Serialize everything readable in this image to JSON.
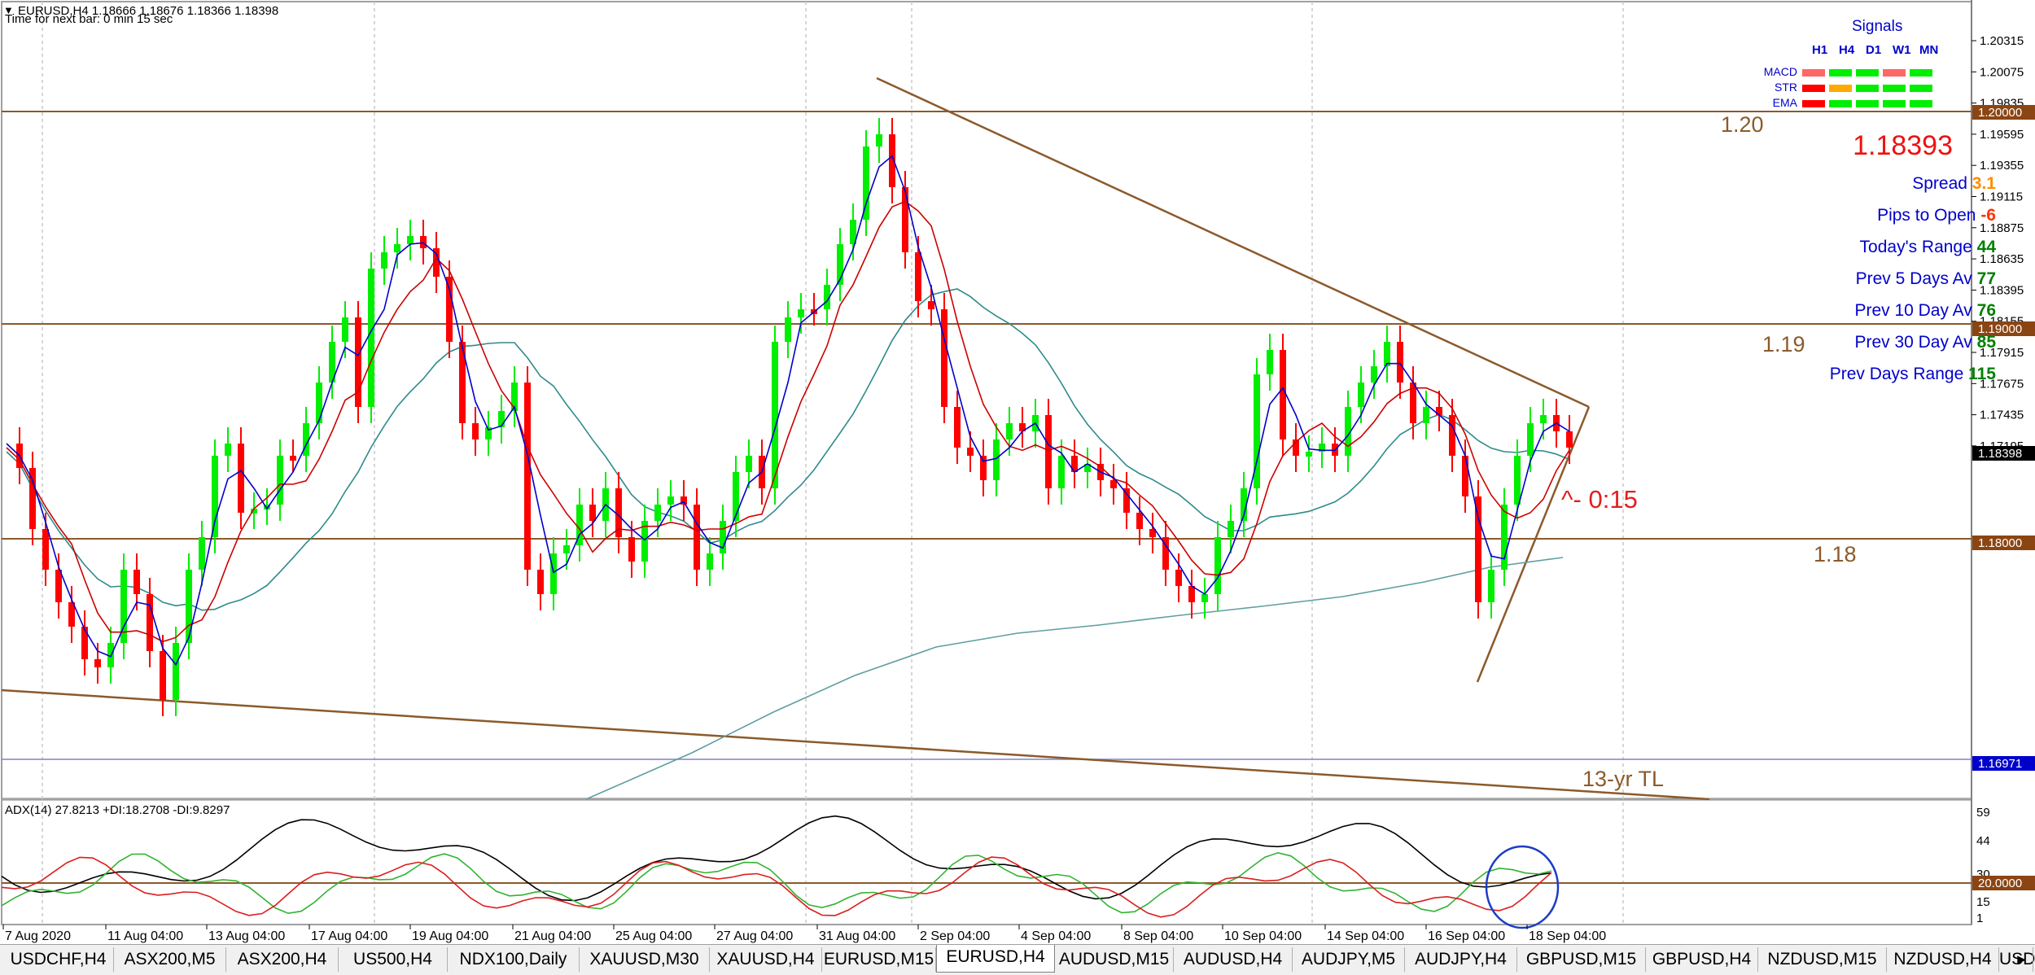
{
  "header": {
    "symbol_line": "EURUSD,H4  1.18666 1.18676 1.18366 1.18398",
    "timer": "Time for next bar: 0 min 15 sec"
  },
  "price_axis": {
    "labels": [
      "1.20315",
      "1.20075",
      "1.19835",
      "1.19595",
      "1.19355",
      "1.19115",
      "1.18875",
      "1.18635",
      "1.18395",
      "1.18155",
      "1.17915",
      "1.17675",
      "1.17435",
      "1.17195"
    ],
    "boxes": {
      "level_120": "1.20000",
      "level_119": "1.19000",
      "current": "1.18398",
      "level_118": "1.18000",
      "trendline": "1.16971"
    }
  },
  "annotations": {
    "level_120": "1.20",
    "level_119": "1.19",
    "level_118": "1.18",
    "trendline_13yr": "13-yr TL",
    "countdown": "^- 0:15"
  },
  "signals": {
    "title": "Signals",
    "timeframes": [
      "H1",
      "H4",
      "D1",
      "W1",
      "MN"
    ],
    "rows": [
      {
        "name": "MACD",
        "colors": [
          "#ff6666",
          "#00ee00",
          "#00ee00",
          "#ff6666",
          "#00ee00"
        ]
      },
      {
        "name": "STR",
        "colors": [
          "#ff0000",
          "#ffaa00",
          "#00ee00",
          "#00ee00",
          "#00ee00"
        ]
      },
      {
        "name": "EMA",
        "colors": [
          "#ff0000",
          "#00ee00",
          "#00ee00",
          "#00ee00",
          "#00ee00"
        ]
      }
    ],
    "price": "1.18393",
    "stats": [
      {
        "label": "Spread",
        "value": "3.1",
        "color": "#ff8c00"
      },
      {
        "label": "Pips to Open",
        "value": "-6",
        "color": "#ff3300"
      },
      {
        "label": "Today's Range",
        "value": "44",
        "color": "#008000"
      },
      {
        "label": "Prev 5 Days Av",
        "value": "77",
        "color": "#008000"
      },
      {
        "label": "Prev 10 Day Av",
        "value": "76",
        "color": "#008000"
      },
      {
        "label": "Prev 30 Day Av",
        "value": "85",
        "color": "#008000"
      },
      {
        "label": "Prev Days Range",
        "value": "115",
        "color": "#008000"
      }
    ]
  },
  "indicator": {
    "label": "ADX(14) 27.8213 +DI:18.2708 -DI:9.8297",
    "axis_labels": [
      "59",
      "44",
      "30",
      "15",
      "1"
    ],
    "level_box": "20.0000"
  },
  "time_axis": [
    "7 Aug 2020",
    "11 Aug 04:00",
    "13 Aug 04:00",
    "17 Aug 04:00",
    "19 Aug 04:00",
    "21 Aug 04:00",
    "25 Aug 04:00",
    "27 Aug 04:00",
    "31 Aug 04:00",
    "2 Sep 04:00",
    "4 Sep 04:00",
    "8 Sep 04:00",
    "10 Sep 04:00",
    "14 Sep 04:00",
    "16 Sep 04:00",
    "18 Sep 04:00"
  ],
  "tabs": [
    "USDCHF,H4",
    "ASX200,M5",
    "ASX200,H4",
    "US500,H4",
    "NDX100,Daily",
    "XAUUSD,M30",
    "XAUUSD,H4",
    "EURUSD,M15",
    "EURUSD,H4",
    "AUDUSD,M15",
    "AUDUSD,H4",
    "AUDJPY,M5",
    "AUDJPY,H4",
    "GBPUSD,M15",
    "GBPUSD,H4",
    "NZDUSD,M15",
    "NZDUSD,H4",
    "USDC"
  ],
  "active_tab": "EURUSD,H4",
  "tab_scroll_arrow": "▸",
  "colors": {
    "bull": "#00ee00",
    "bear": "#ff0000",
    "levels": "#8b5a2b",
    "ma_fast": "#0000cc",
    "ma_mid": "#cc0000",
    "ma_slow": "#2e8b8b",
    "adx": "#000000",
    "plus_di": "#32b432",
    "minus_di": "#dc1e1e",
    "price_box": "#000000",
    "level_box": "#8b4513",
    "tl_box": "#0000cc"
  }
}
